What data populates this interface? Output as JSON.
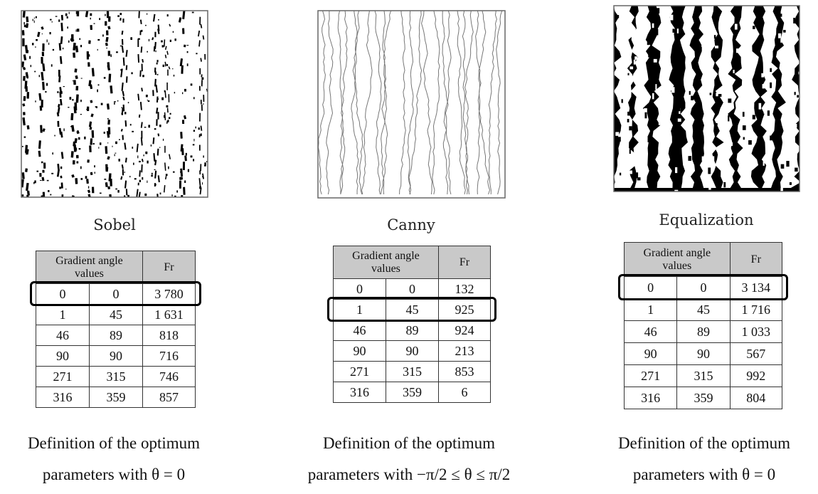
{
  "panels": [
    {
      "label": "Sobel",
      "table": {
        "header": [
          "Gradient angle values",
          "Fr"
        ],
        "rows": [
          [
            "0",
            "0",
            "3 780"
          ],
          [
            "1",
            "45",
            "1 631"
          ],
          [
            "46",
            "89",
            "818"
          ],
          [
            "90",
            "90",
            "716"
          ],
          [
            "271",
            "315",
            "746"
          ],
          [
            "316",
            "359",
            "857"
          ]
        ]
      },
      "caption": [
        "Definition of the optimum",
        "parameters with θ = 0"
      ]
    },
    {
      "label": "Canny",
      "table": {
        "header": [
          "Gradient angle values",
          "Fr"
        ],
        "rows": [
          [
            "0",
            "0",
            "132"
          ],
          [
            "1",
            "45",
            "925"
          ],
          [
            "46",
            "89",
            "924"
          ],
          [
            "90",
            "90",
            "213"
          ],
          [
            "271",
            "315",
            "853"
          ],
          [
            "316",
            "359",
            "6"
          ]
        ]
      },
      "caption": [
        "Definition of the optimum",
        "parameters with −π/2 ≤ θ ≤ π/2"
      ]
    },
    {
      "label": "Equalization",
      "table": {
        "header": [
          "Gradient angle values",
          "Fr"
        ],
        "rows": [
          [
            "0",
            "0",
            "3 134"
          ],
          [
            "1",
            "45",
            "1 716"
          ],
          [
            "46",
            "89",
            "1 033"
          ],
          [
            "90",
            "90",
            "567"
          ],
          [
            "271",
            "315",
            "992"
          ],
          [
            "316",
            "359",
            "804"
          ]
        ]
      },
      "caption": [
        "Definition of the optimum",
        "parameters with θ = 0"
      ]
    }
  ]
}
